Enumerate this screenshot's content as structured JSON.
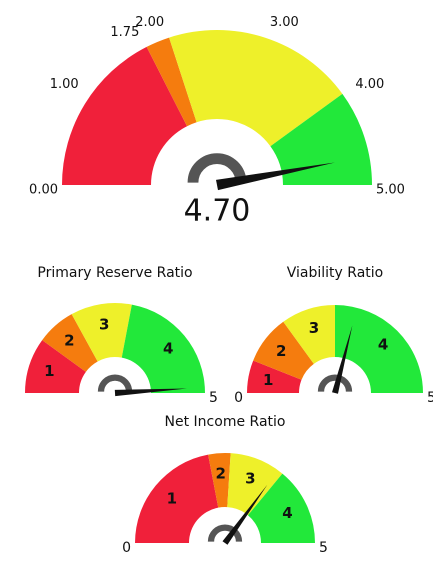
{
  "chart_data": [
    {
      "type": "gauge",
      "ylim": [
        0,
        5
      ],
      "yticks": [
        {
          "value": 0,
          "label": "0.00"
        },
        {
          "value": 1,
          "label": "1.00"
        },
        1.75,
        {
          "value": 2,
          "label": "2.00"
        },
        {
          "value": 3,
          "label": "3.00"
        },
        {
          "value": 4,
          "label": "4.00"
        },
        {
          "value": 5,
          "label": "5.00"
        }
      ],
      "bands": [
        {
          "from": 0,
          "to": 1.75,
          "color": "#f0203a"
        },
        {
          "from": 1.75,
          "to": 2,
          "color": "#f57c0e"
        },
        {
          "from": 2,
          "to": 4,
          "color": "#eef02a"
        },
        {
          "from": 4,
          "to": 5,
          "color": "#22e83a"
        }
      ],
      "value": 4.7,
      "value_label": "4.70"
    },
    {
      "type": "gauge",
      "title": "Primary Reserve Ratio",
      "ylim": [
        0,
        5
      ],
      "yticks": [
        5
      ],
      "bands": [
        {
          "label": "1",
          "from": 0,
          "to": 1,
          "color": "#f0203a"
        },
        {
          "label": "2",
          "from": 1,
          "to": 1.7,
          "color": "#f57c0e"
        },
        {
          "label": "3",
          "from": 1.7,
          "to": 2.8,
          "color": "#eef02a"
        },
        {
          "label": "4",
          "from": 2.8,
          "to": 5,
          "color": "#22e83a"
        }
      ],
      "value": 4.9
    },
    {
      "type": "gauge",
      "title": "Viability Ratio",
      "ylim": [
        0,
        5
      ],
      "yticks": [
        0,
        5
      ],
      "bands": [
        {
          "label": "1",
          "from": 0,
          "to": 0.6,
          "color": "#f0203a"
        },
        {
          "label": "2",
          "from": 0.6,
          "to": 1.5,
          "color": "#f57c0e"
        },
        {
          "label": "3",
          "from": 1.5,
          "to": 2.5,
          "color": "#eef02a"
        },
        {
          "label": "4",
          "from": 2.5,
          "to": 5,
          "color": "#22e83a"
        }
      ],
      "value": 2.9
    },
    {
      "type": "gauge",
      "title": "Net Income Ratio",
      "ylim": [
        0,
        5
      ],
      "yticks": [
        0,
        5
      ],
      "bands": [
        {
          "label": "1",
          "from": 0,
          "to": 2.2,
          "color": "#f0203a"
        },
        {
          "label": "2",
          "from": 2.2,
          "to": 2.6,
          "color": "#f57c0e"
        },
        {
          "label": "3",
          "from": 2.6,
          "to": 3.6,
          "color": "#eef02a"
        },
        {
          "label": "4",
          "from": 3.6,
          "to": 5,
          "color": "#22e83a"
        }
      ],
      "value": 3.5
    }
  ]
}
